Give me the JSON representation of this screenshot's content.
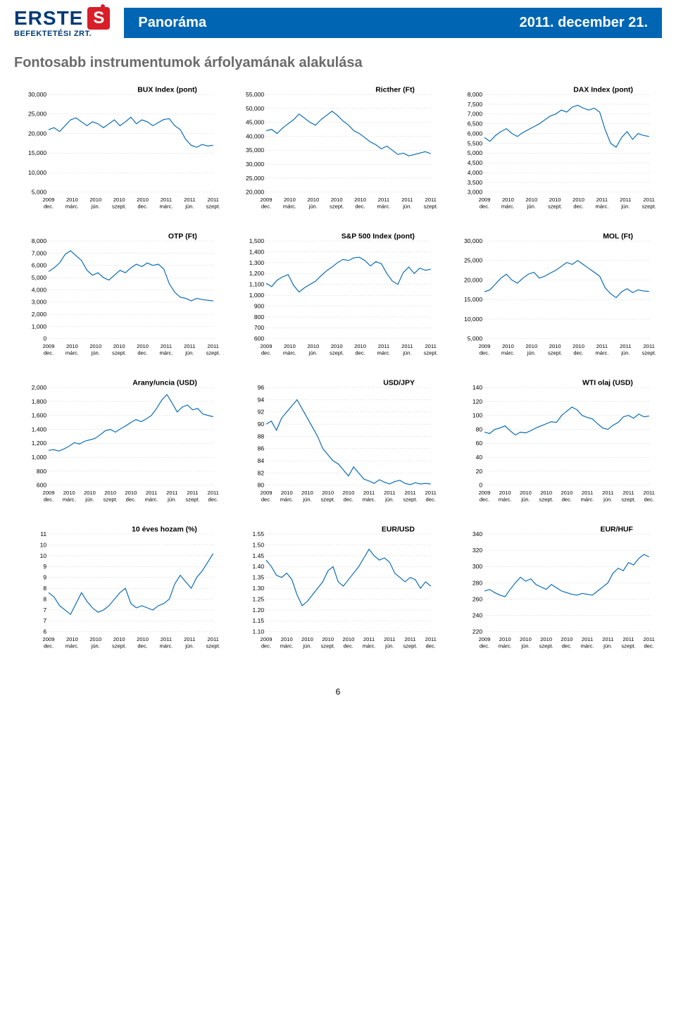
{
  "header": {
    "logo_text": "ERSTE",
    "logo_sub": "BEFEKTETÉSI ZRT.",
    "title": "Panoráma",
    "date": "2011. december 21."
  },
  "section_title": "Fontosabb instrumentumok árfolyamának alakulása",
  "page_number": "6",
  "x_labels_8": [
    "2009 dec.",
    "2010 márc.",
    "2010 jún.",
    "2010 szept.",
    "2010 dec.",
    "2011 márc.",
    "2011 jún.",
    "2011 szept."
  ],
  "x_labels_9": [
    "2009 dec.",
    "2010 márc.",
    "2010 jún.",
    "2010 szept.",
    "2010 dec.",
    "2011 márc.",
    "2011 jún.",
    "2011 szept.",
    "2011 dec."
  ],
  "style": {
    "line_color": "#0066b3",
    "grid_color": "#cccccc",
    "axis_color": "#888888",
    "title_fontsize": 11,
    "label_fontsize": 9,
    "line_width": 1.2
  },
  "charts": [
    {
      "title": "BUX Index (pont)",
      "ylim": [
        5000,
        30000
      ],
      "ystep": 5000,
      "yfmt": "k",
      "xcount": 8,
      "data": [
        21000,
        21500,
        20500,
        22000,
        23500,
        24000,
        23000,
        22000,
        23000,
        22500,
        21500,
        22500,
        23500,
        22000,
        23000,
        24200,
        22500,
        23500,
        23000,
        22000,
        22800,
        23600,
        23800,
        22000,
        21000,
        18500,
        17000,
        16500,
        17200,
        16800,
        17000
      ]
    },
    {
      "title": "Ricther (Ft)",
      "ylim": [
        20000,
        55000
      ],
      "ystep": 5000,
      "yfmt": "k",
      "xcount": 8,
      "data": [
        42000,
        42500,
        41000,
        43000,
        44500,
        46000,
        48000,
        46500,
        45000,
        44000,
        46000,
        47500,
        49000,
        47500,
        45500,
        44000,
        42000,
        41000,
        39500,
        38000,
        37000,
        35500,
        36500,
        35000,
        33500,
        34000,
        33000,
        33500,
        34000,
        34500,
        33800
      ]
    },
    {
      "title": "DAX Index (pont)",
      "ylim": [
        3000,
        8000
      ],
      "ystep": 500,
      "yfmt": "k",
      "xcount": 8,
      "data": [
        5800,
        5600,
        5900,
        6100,
        6250,
        6000,
        5850,
        6050,
        6200,
        6350,
        6500,
        6700,
        6900,
        7000,
        7200,
        7100,
        7350,
        7450,
        7300,
        7200,
        7300,
        7100,
        6200,
        5500,
        5300,
        5800,
        6100,
        5700,
        6000,
        5900,
        5850
      ]
    },
    {
      "title": "OTP (Ft)",
      "ylim": [
        0,
        8000
      ],
      "ystep": 1000,
      "yfmt": "k",
      "xcount": 8,
      "data": [
        5500,
        5800,
        6200,
        6900,
        7200,
        6800,
        6400,
        5600,
        5200,
        5400,
        5000,
        4800,
        5200,
        5600,
        5400,
        5800,
        6100,
        5900,
        6200,
        6000,
        6100,
        5700,
        4500,
        3800,
        3400,
        3300,
        3100,
        3300,
        3200,
        3150,
        3100
      ]
    },
    {
      "title": "S&P 500 Index (pont)",
      "ylim": [
        600,
        1500
      ],
      "ystep": 100,
      "yfmt": "k",
      "xcount": 8,
      "data": [
        1110,
        1080,
        1140,
        1170,
        1190,
        1090,
        1030,
        1070,
        1100,
        1130,
        1180,
        1225,
        1260,
        1300,
        1330,
        1320,
        1345,
        1350,
        1320,
        1270,
        1310,
        1290,
        1200,
        1130,
        1100,
        1210,
        1260,
        1200,
        1250,
        1230,
        1240
      ]
    },
    {
      "title": "MOL (Ft)",
      "ylim": [
        5000,
        30000
      ],
      "ystep": 5000,
      "yfmt": "k",
      "xcount": 8,
      "data": [
        17000,
        17500,
        19000,
        20500,
        21500,
        20000,
        19200,
        20500,
        21500,
        22000,
        20500,
        21000,
        21800,
        22500,
        23500,
        24500,
        24000,
        25000,
        24000,
        23000,
        22000,
        21000,
        18000,
        16500,
        15500,
        17000,
        17800,
        16800,
        17500,
        17200,
        17100
      ]
    },
    {
      "title": "Arany/uncia (USD)",
      "ylim": [
        600,
        2000
      ],
      "ystep": 200,
      "yfmt": "k",
      "xcount": 9,
      "data": [
        1100,
        1110,
        1090,
        1120,
        1160,
        1210,
        1190,
        1230,
        1250,
        1270,
        1320,
        1380,
        1400,
        1360,
        1410,
        1450,
        1500,
        1540,
        1510,
        1550,
        1600,
        1700,
        1820,
        1900,
        1780,
        1650,
        1720,
        1750,
        1680,
        1700,
        1620,
        1600,
        1580
      ]
    },
    {
      "title": "USD/JPY",
      "ylim": [
        80,
        96
      ],
      "ystep": 2,
      "yfmt": "n",
      "xcount": 9,
      "data": [
        90,
        90.5,
        89,
        91,
        92,
        93,
        94,
        92.5,
        91,
        89.5,
        88,
        86,
        85,
        84,
        83.5,
        82.5,
        81.5,
        83,
        82,
        81,
        80.7,
        80.3,
        80.9,
        80.5,
        80.2,
        80.6,
        80.8,
        80.3,
        80.1,
        80.4,
        80.2,
        80.3,
        80.2
      ]
    },
    {
      "title": "WTI olaj (USD)",
      "ylim": [
        0,
        140
      ],
      "ystep": 20,
      "yfmt": "n",
      "xcount": 9,
      "data": [
        76,
        74,
        80,
        82,
        85,
        78,
        72,
        76,
        75,
        78,
        82,
        85,
        88,
        91,
        90,
        100,
        106,
        112,
        108,
        100,
        97,
        95,
        88,
        82,
        80,
        86,
        90,
        98,
        100,
        96,
        102,
        98,
        99
      ]
    },
    {
      "title": "10 éves hozam (%)",
      "ylim": [
        6,
        10.5
      ],
      "ystep": 0.5,
      "yfmt": "h",
      "xcount": 8,
      "data": [
        7.8,
        7.6,
        7.2,
        7.0,
        6.8,
        7.3,
        7.8,
        7.4,
        7.1,
        6.9,
        7.0,
        7.2,
        7.5,
        7.8,
        8.0,
        7.3,
        7.1,
        7.2,
        7.1,
        7.0,
        7.2,
        7.3,
        7.5,
        8.2,
        8.6,
        8.3,
        8.0,
        8.5,
        8.8,
        9.2,
        9.6
      ]
    },
    {
      "title": "EUR/USD",
      "ylim": [
        1.1,
        1.55
      ],
      "ystep": 0.05,
      "yfmt": "d",
      "xcount": 9,
      "data": [
        1.43,
        1.4,
        1.36,
        1.35,
        1.37,
        1.34,
        1.27,
        1.22,
        1.24,
        1.27,
        1.3,
        1.33,
        1.38,
        1.4,
        1.33,
        1.31,
        1.34,
        1.37,
        1.4,
        1.44,
        1.48,
        1.45,
        1.43,
        1.44,
        1.42,
        1.37,
        1.35,
        1.33,
        1.35,
        1.34,
        1.3,
        1.33,
        1.31
      ]
    },
    {
      "title": "EUR/HUF",
      "ylim": [
        220,
        340
      ],
      "ystep": 20,
      "yfmt": "n",
      "xcount": 9,
      "data": [
        270,
        272,
        268,
        265,
        263,
        272,
        280,
        287,
        282,
        285,
        278,
        275,
        272,
        278,
        274,
        270,
        268,
        266,
        265,
        267,
        266,
        265,
        270,
        275,
        280,
        292,
        298,
        295,
        305,
        302,
        310,
        315,
        312
      ]
    }
  ]
}
